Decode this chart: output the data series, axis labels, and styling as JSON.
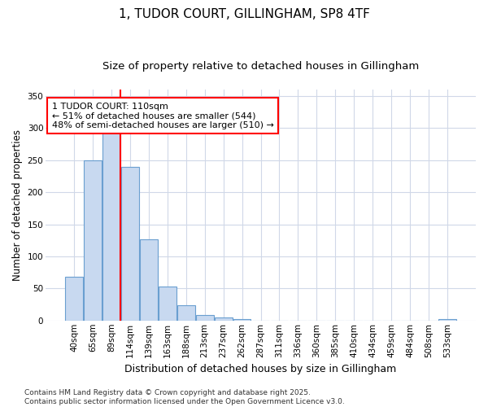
{
  "title": "1, TUDOR COURT, GILLINGHAM, SP8 4TF",
  "subtitle": "Size of property relative to detached houses in Gillingham",
  "xlabel": "Distribution of detached houses by size in Gillingham",
  "ylabel": "Number of detached properties",
  "categories": [
    "40sqm",
    "65sqm",
    "89sqm",
    "114sqm",
    "139sqm",
    "163sqm",
    "188sqm",
    "213sqm",
    "237sqm",
    "262sqm",
    "287sqm",
    "311sqm",
    "336sqm",
    "360sqm",
    "385sqm",
    "410sqm",
    "434sqm",
    "459sqm",
    "484sqm",
    "508sqm",
    "533sqm"
  ],
  "values": [
    68,
    250,
    293,
    240,
    127,
    53,
    24,
    9,
    5,
    2,
    0,
    0,
    0,
    0,
    0,
    0,
    0,
    0,
    0,
    0,
    2
  ],
  "bar_color": "#c8d9f0",
  "bar_edge_color": "#6a9fd0",
  "vline_x": 2.5,
  "vline_color": "red",
  "annotation_text": "1 TUDOR COURT: 110sqm\n← 51% of detached houses are smaller (544)\n48% of semi-detached houses are larger (510) →",
  "annotation_box_color": "white",
  "annotation_box_edge": "red",
  "ylim": [
    0,
    360
  ],
  "yticks": [
    0,
    50,
    100,
    150,
    200,
    250,
    300,
    350
  ],
  "bg_color": "#ffffff",
  "grid_color": "#d0d8e8",
  "footer": "Contains HM Land Registry data © Crown copyright and database right 2025.\nContains public sector information licensed under the Open Government Licence v3.0.",
  "title_fontsize": 11,
  "subtitle_fontsize": 9.5,
  "xlabel_fontsize": 9,
  "ylabel_fontsize": 8.5,
  "tick_fontsize": 7.5,
  "footer_fontsize": 6.5,
  "annot_fontsize": 8
}
